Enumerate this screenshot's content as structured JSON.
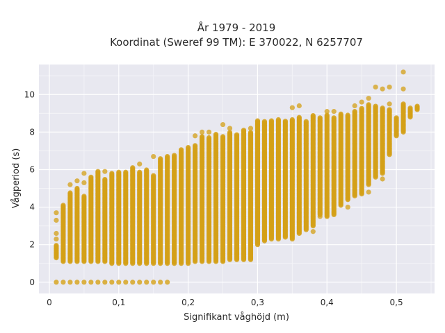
{
  "chart_data": {
    "type": "scatter",
    "title_line1": "År 1979 - 2019",
    "title_line2": "Koordinat (Sweref 99 TM): E 370022, N 6257707",
    "xlabel": "Signifikant våghöjd (m)",
    "ylabel": "Vågperiod (s)",
    "xlim": [
      -0.015,
      0.555
    ],
    "ylim": [
      -0.6,
      11.6
    ],
    "x_ticks": [
      0,
      0.1,
      0.2,
      0.3,
      0.4,
      0.5
    ],
    "x_tick_labels": [
      "0",
      "0,1",
      "0,2",
      "0,3",
      "0,4",
      "0,5"
    ],
    "y_ticks": [
      0,
      2,
      4,
      6,
      8,
      10
    ],
    "y_tick_labels": [
      "0",
      "2",
      "4",
      "6",
      "8",
      "10"
    ],
    "grid": true,
    "marker_color": "#D4A017",
    "background_color": "#E8E8F0",
    "columns": [
      {
        "x": 0.01,
        "y_min": 1.3,
        "y_max": 2.0,
        "zero": true,
        "outliers": [
          2.3,
          2.6,
          3.3,
          3.7
        ]
      },
      {
        "x": 0.02,
        "y_min": 1.1,
        "y_max": 4.1,
        "zero": true,
        "outliers": []
      },
      {
        "x": 0.03,
        "y_min": 1.1,
        "y_max": 4.8,
        "zero": true,
        "outliers": [
          5.2
        ]
      },
      {
        "x": 0.04,
        "y_min": 1.1,
        "y_max": 5.0,
        "zero": true,
        "outliers": [
          5.4
        ]
      },
      {
        "x": 0.05,
        "y_min": 1.1,
        "y_max": 4.6,
        "zero": true,
        "outliers": [
          5.3,
          5.8
        ]
      },
      {
        "x": 0.06,
        "y_min": 1.1,
        "y_max": 5.6,
        "zero": true,
        "outliers": [
          5.0
        ]
      },
      {
        "x": 0.07,
        "y_min": 1.1,
        "y_max": 5.9,
        "zero": true,
        "outliers": []
      },
      {
        "x": 0.08,
        "y_min": 1.1,
        "y_max": 5.5,
        "zero": true,
        "outliers": [
          5.9
        ]
      },
      {
        "x": 0.09,
        "y_min": 1.0,
        "y_max": 5.8,
        "zero": true,
        "outliers": []
      },
      {
        "x": 0.1,
        "y_min": 1.0,
        "y_max": 5.9,
        "zero": true,
        "outliers": []
      },
      {
        "x": 0.11,
        "y_min": 1.0,
        "y_max": 5.9,
        "zero": true,
        "outliers": []
      },
      {
        "x": 0.12,
        "y_min": 1.0,
        "y_max": 6.1,
        "zero": true,
        "outliers": []
      },
      {
        "x": 0.13,
        "y_min": 1.0,
        "y_max": 5.9,
        "zero": true,
        "outliers": [
          6.3
        ]
      },
      {
        "x": 0.14,
        "y_min": 1.0,
        "y_max": 6.0,
        "zero": true,
        "outliers": []
      },
      {
        "x": 0.15,
        "y_min": 1.0,
        "y_max": 5.7,
        "zero": true,
        "outliers": [
          6.7
        ]
      },
      {
        "x": 0.16,
        "y_min": 1.0,
        "y_max": 6.6,
        "zero": true,
        "outliers": []
      },
      {
        "x": 0.17,
        "y_min": 1.0,
        "y_max": 6.7,
        "zero": true,
        "outliers": [
          6.3
        ]
      },
      {
        "x": 0.18,
        "y_min": 1.0,
        "y_max": 6.8,
        "zero": false,
        "outliers": []
      },
      {
        "x": 0.19,
        "y_min": 1.0,
        "y_max": 7.1,
        "zero": false,
        "outliers": [
          6.0
        ]
      },
      {
        "x": 0.2,
        "y_min": 1.0,
        "y_max": 7.2,
        "zero": false,
        "outliers": []
      },
      {
        "x": 0.21,
        "y_min": 1.1,
        "y_max": 7.3,
        "zero": false,
        "outliers": [
          7.8
        ]
      },
      {
        "x": 0.22,
        "y_min": 1.1,
        "y_max": 7.8,
        "zero": false,
        "outliers": [
          8.0
        ]
      },
      {
        "x": 0.23,
        "y_min": 1.1,
        "y_max": 7.7,
        "zero": false,
        "outliers": [
          8.0
        ]
      },
      {
        "x": 0.24,
        "y_min": 1.1,
        "y_max": 7.9,
        "zero": false,
        "outliers": []
      },
      {
        "x": 0.25,
        "y_min": 1.1,
        "y_max": 7.8,
        "zero": false,
        "outliers": [
          8.4
        ]
      },
      {
        "x": 0.26,
        "y_min": 1.2,
        "y_max": 8.0,
        "zero": false,
        "outliers": [
          1.5,
          8.2
        ]
      },
      {
        "x": 0.27,
        "y_min": 1.2,
        "y_max": 7.9,
        "zero": false,
        "outliers": [
          1.5,
          1.8
        ]
      },
      {
        "x": 0.28,
        "y_min": 1.2,
        "y_max": 8.1,
        "zero": false,
        "outliers": [
          1.5,
          1.8,
          2.0
        ]
      },
      {
        "x": 0.29,
        "y_min": 1.2,
        "y_max": 8.0,
        "zero": false,
        "outliers": [
          2.0,
          8.2
        ]
      },
      {
        "x": 0.3,
        "y_min": 2.0,
        "y_max": 8.6,
        "zero": false,
        "outliers": []
      },
      {
        "x": 0.31,
        "y_min": 2.2,
        "y_max": 8.6,
        "zero": false,
        "outliers": []
      },
      {
        "x": 0.32,
        "y_min": 2.3,
        "y_max": 8.6,
        "zero": false,
        "outliers": []
      },
      {
        "x": 0.33,
        "y_min": 2.3,
        "y_max": 8.7,
        "zero": false,
        "outliers": []
      },
      {
        "x": 0.34,
        "y_min": 2.4,
        "y_max": 8.6,
        "zero": false,
        "outliers": []
      },
      {
        "x": 0.35,
        "y_min": 2.3,
        "y_max": 8.7,
        "zero": false,
        "outliers": [
          9.3
        ]
      },
      {
        "x": 0.36,
        "y_min": 2.6,
        "y_max": 8.8,
        "zero": false,
        "outliers": [
          9.4
        ]
      },
      {
        "x": 0.37,
        "y_min": 2.8,
        "y_max": 8.6,
        "zero": false,
        "outliers": []
      },
      {
        "x": 0.38,
        "y_min": 3.0,
        "y_max": 8.9,
        "zero": false,
        "outliers": [
          2.7
        ]
      },
      {
        "x": 0.39,
        "y_min": 3.6,
        "y_max": 8.8,
        "zero": false,
        "outliers": [
          3.5
        ]
      },
      {
        "x": 0.4,
        "y_min": 3.5,
        "y_max": 8.9,
        "zero": false,
        "outliers": [
          9.1
        ]
      },
      {
        "x": 0.41,
        "y_min": 3.6,
        "y_max": 8.8,
        "zero": false,
        "outliers": [
          9.1
        ]
      },
      {
        "x": 0.42,
        "y_min": 4.1,
        "y_max": 9.0,
        "zero": false,
        "outliers": []
      },
      {
        "x": 0.43,
        "y_min": 4.4,
        "y_max": 8.9,
        "zero": false,
        "outliers": [
          4.0
        ]
      },
      {
        "x": 0.44,
        "y_min": 4.6,
        "y_max": 9.1,
        "zero": false,
        "outliers": [
          9.4
        ]
      },
      {
        "x": 0.45,
        "y_min": 4.7,
        "y_max": 9.3,
        "zero": false,
        "outliers": [
          9.6
        ]
      },
      {
        "x": 0.46,
        "y_min": 5.2,
        "y_max": 9.5,
        "zero": false,
        "outliers": [
          4.8,
          9.8
        ]
      },
      {
        "x": 0.47,
        "y_min": 5.6,
        "y_max": 9.4,
        "zero": false,
        "outliers": [
          10.4
        ]
      },
      {
        "x": 0.48,
        "y_min": 5.8,
        "y_max": 9.3,
        "zero": false,
        "outliers": [
          5.5,
          10.3
        ]
      },
      {
        "x": 0.49,
        "y_min": 6.8,
        "y_max": 9.2,
        "zero": false,
        "outliers": [
          9.5,
          10.4
        ]
      },
      {
        "x": 0.5,
        "y_min": 7.8,
        "y_max": 8.8,
        "zero": false,
        "outliers": []
      },
      {
        "x": 0.51,
        "y_min": 8.0,
        "y_max": 9.5,
        "zero": false,
        "outliers": [
          10.3,
          11.2
        ]
      },
      {
        "x": 0.52,
        "y_min": 8.8,
        "y_max": 9.3,
        "zero": false,
        "outliers": []
      },
      {
        "x": 0.53,
        "y_min": 9.2,
        "y_max": 9.4,
        "zero": false,
        "outliers": []
      }
    ]
  }
}
